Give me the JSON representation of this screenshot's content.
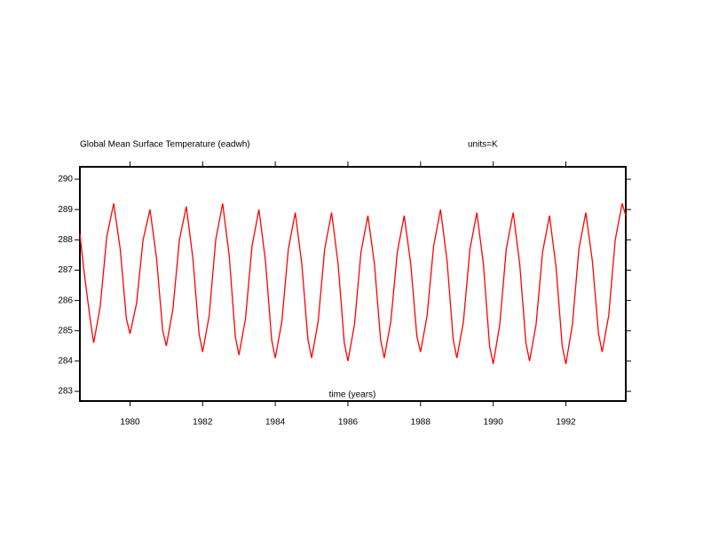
{
  "chart_data": {
    "type": "line",
    "title": "Global Mean Surface Temperature (eadwh)",
    "subtitle": "units=K",
    "xlabel": "time (years)",
    "xlim": [
      1978.62,
      1993.65
    ],
    "ylim": [
      282.68,
      290.41
    ],
    "xticks": [
      1980,
      1982,
      1984,
      1986,
      1988,
      1990,
      1992
    ],
    "yticks": [
      283,
      284,
      285,
      286,
      287,
      288,
      289,
      290
    ],
    "series": [
      {
        "name": "Global Mean Surface Temperature",
        "color": "#ff0000",
        "x": [
          1978.62,
          1978.73,
          1978.9,
          1979.0,
          1979.18,
          1979.36,
          1979.55,
          1979.73,
          1979.9,
          1980.0,
          1980.18,
          1980.36,
          1980.55,
          1980.73,
          1980.9,
          1981.0,
          1981.18,
          1981.36,
          1981.55,
          1981.73,
          1981.9,
          1982.0,
          1982.18,
          1982.36,
          1982.55,
          1982.73,
          1982.9,
          1983.0,
          1983.18,
          1983.36,
          1983.55,
          1983.73,
          1983.9,
          1984.0,
          1984.18,
          1984.36,
          1984.55,
          1984.73,
          1984.9,
          1985.0,
          1985.18,
          1985.36,
          1985.55,
          1985.73,
          1985.9,
          1986.0,
          1986.18,
          1986.36,
          1986.55,
          1986.73,
          1986.9,
          1987.0,
          1987.18,
          1987.36,
          1987.55,
          1987.73,
          1987.9,
          1988.0,
          1988.18,
          1988.36,
          1988.55,
          1988.73,
          1988.9,
          1989.0,
          1989.18,
          1989.36,
          1989.55,
          1989.73,
          1989.9,
          1990.0,
          1990.18,
          1990.36,
          1990.55,
          1990.73,
          1990.9,
          1991.0,
          1991.18,
          1991.36,
          1991.55,
          1991.73,
          1991.9,
          1992.0,
          1992.18,
          1992.36,
          1992.55,
          1992.73,
          1992.9,
          1993.0,
          1993.18,
          1993.36,
          1993.55,
          1993.65
        ],
        "values": [
          288.2,
          287.0,
          285.4,
          284.6,
          285.8,
          288.1,
          289.2,
          287.7,
          285.4,
          284.9,
          285.9,
          288.0,
          289.0,
          287.4,
          285.0,
          284.5,
          285.7,
          288.0,
          289.1,
          287.4,
          284.9,
          284.3,
          285.5,
          288.0,
          289.2,
          287.5,
          284.8,
          284.2,
          285.4,
          287.8,
          289.0,
          287.3,
          284.7,
          284.1,
          285.3,
          287.7,
          288.9,
          287.2,
          284.7,
          284.1,
          285.3,
          287.7,
          288.9,
          287.2,
          284.6,
          284.0,
          285.2,
          287.6,
          288.8,
          287.2,
          284.7,
          284.1,
          285.3,
          287.6,
          288.8,
          287.2,
          284.8,
          284.3,
          285.5,
          287.8,
          289.0,
          287.3,
          284.7,
          284.1,
          285.3,
          287.7,
          288.9,
          287.2,
          284.5,
          283.9,
          285.2,
          287.7,
          288.9,
          287.2,
          284.6,
          284.0,
          285.2,
          287.6,
          288.8,
          287.1,
          284.5,
          283.9,
          285.2,
          287.7,
          288.9,
          287.3,
          284.9,
          284.3,
          285.5,
          288.0,
          289.2,
          288.8
        ]
      }
    ]
  }
}
